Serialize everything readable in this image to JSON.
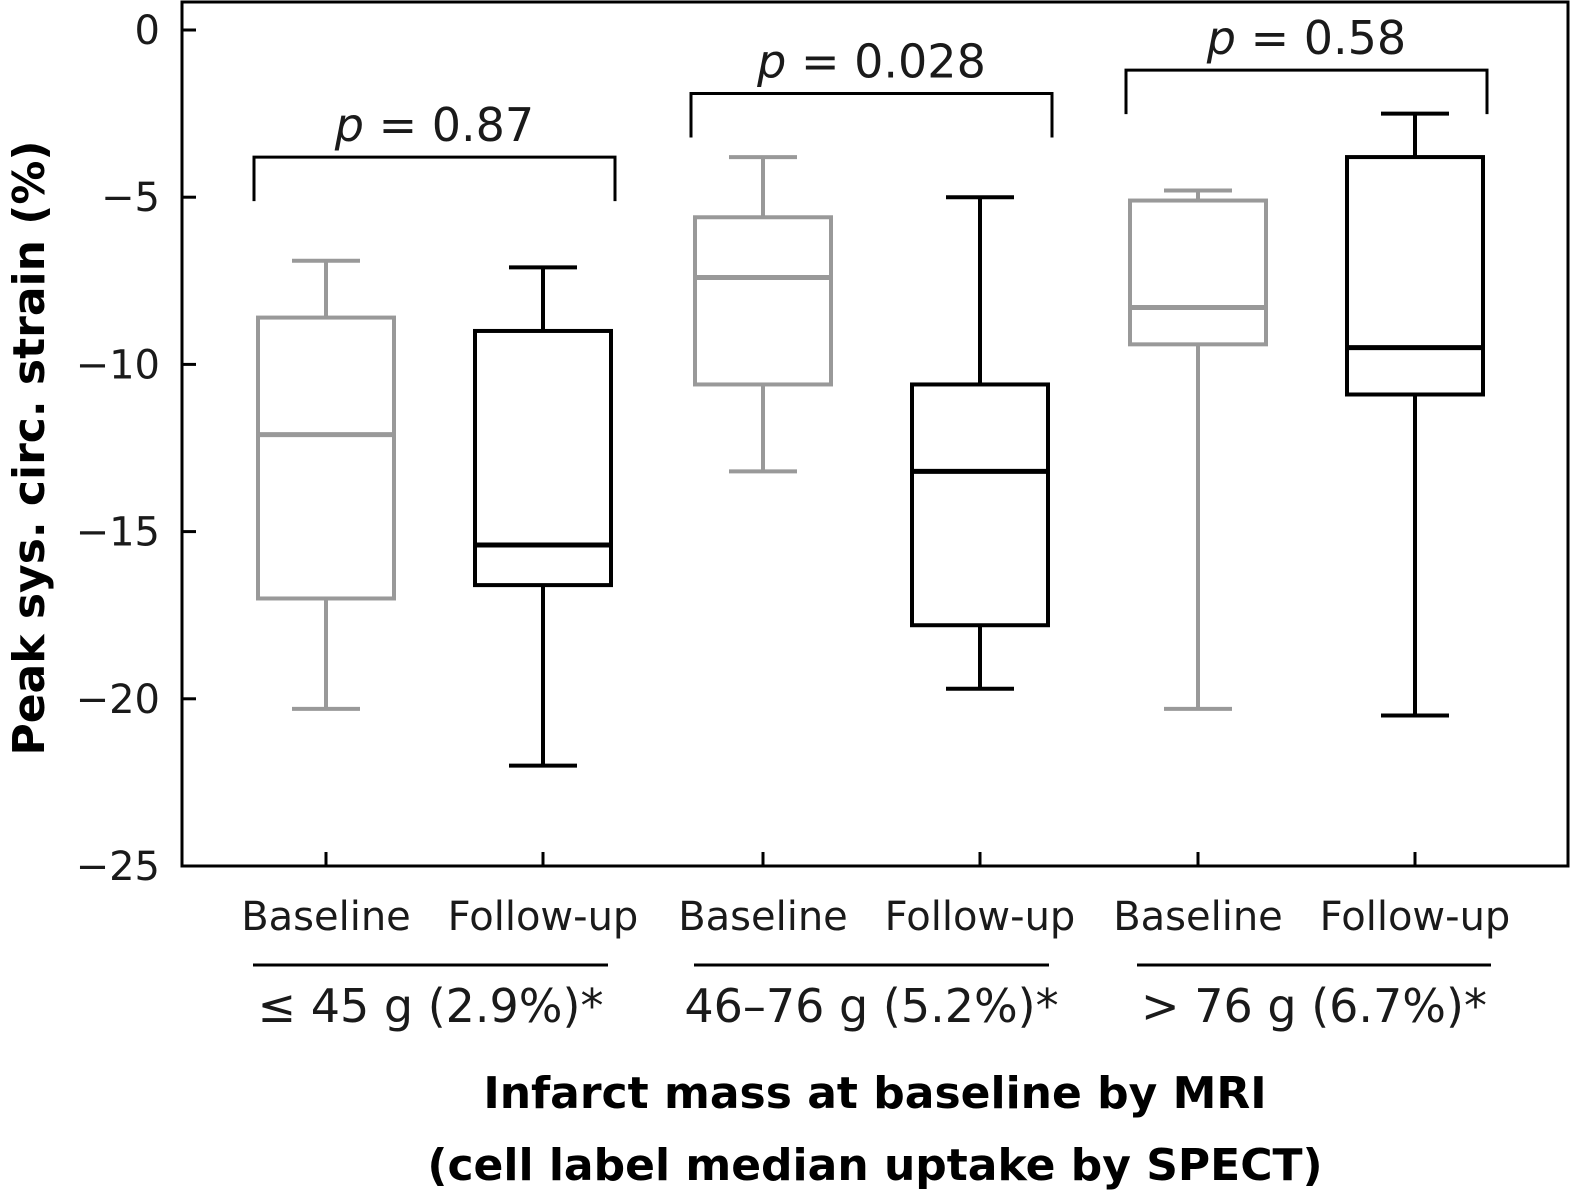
{
  "chart_data": {
    "type": "box",
    "ylabel": "Peak sys. circ. strain (%)",
    "xlabel_line1": "Infarct mass at baseline by MRI",
    "xlabel_line2": "(cell label median uptake by SPECT)",
    "ylim": [
      -25,
      0.5
    ],
    "yticks": [
      0,
      -5,
      -10,
      -15,
      -20,
      -25
    ],
    "ytick_labels": [
      "0",
      "−5",
      "−10",
      "−15",
      "−20",
      "−25"
    ],
    "colors": {
      "baseline": "#999999",
      "followup": "#000000"
    },
    "boxes": [
      {
        "group": 0,
        "label": "Baseline",
        "series": "baseline",
        "whisker_low": -20.3,
        "q1": -17.0,
        "median": -12.1,
        "q3": -8.6,
        "whisker_high": -6.9
      },
      {
        "group": 0,
        "label": "Follow-up",
        "series": "followup",
        "whisker_low": -22.0,
        "q1": -16.6,
        "median": -15.4,
        "q3": -9.0,
        "whisker_high": -7.1
      },
      {
        "group": 1,
        "label": "Baseline",
        "series": "baseline",
        "whisker_low": -13.2,
        "q1": -10.6,
        "median": -7.4,
        "q3": -5.6,
        "whisker_high": -3.8
      },
      {
        "group": 1,
        "label": "Follow-up",
        "series": "followup",
        "whisker_low": -19.7,
        "q1": -17.8,
        "median": -13.2,
        "q3": -10.6,
        "whisker_high": -5.0
      },
      {
        "group": 2,
        "label": "Baseline",
        "series": "baseline",
        "whisker_low": -20.3,
        "q1": -9.4,
        "median": -8.3,
        "q3": -5.1,
        "whisker_high": -4.8
      },
      {
        "group": 2,
        "label": "Follow-up",
        "series": "followup",
        "whisker_low": -20.5,
        "q1": -10.9,
        "median": -9.5,
        "q3": -3.8,
        "whisker_high": -2.5
      }
    ],
    "groups": [
      {
        "label": "≤ 45 g (2.9%)*",
        "p_prefix": "p",
        "p_value": " = 0.87",
        "bracket_y": -3.8
      },
      {
        "label": "46–76 g (5.2%)*",
        "p_prefix": "p",
        "p_value": " = 0.028",
        "bracket_y": -1.9
      },
      {
        "label": "> 76 g (6.7%)*",
        "p_prefix": "p",
        "p_value": " = 0.58",
        "bracket_y": -1.2
      }
    ]
  }
}
